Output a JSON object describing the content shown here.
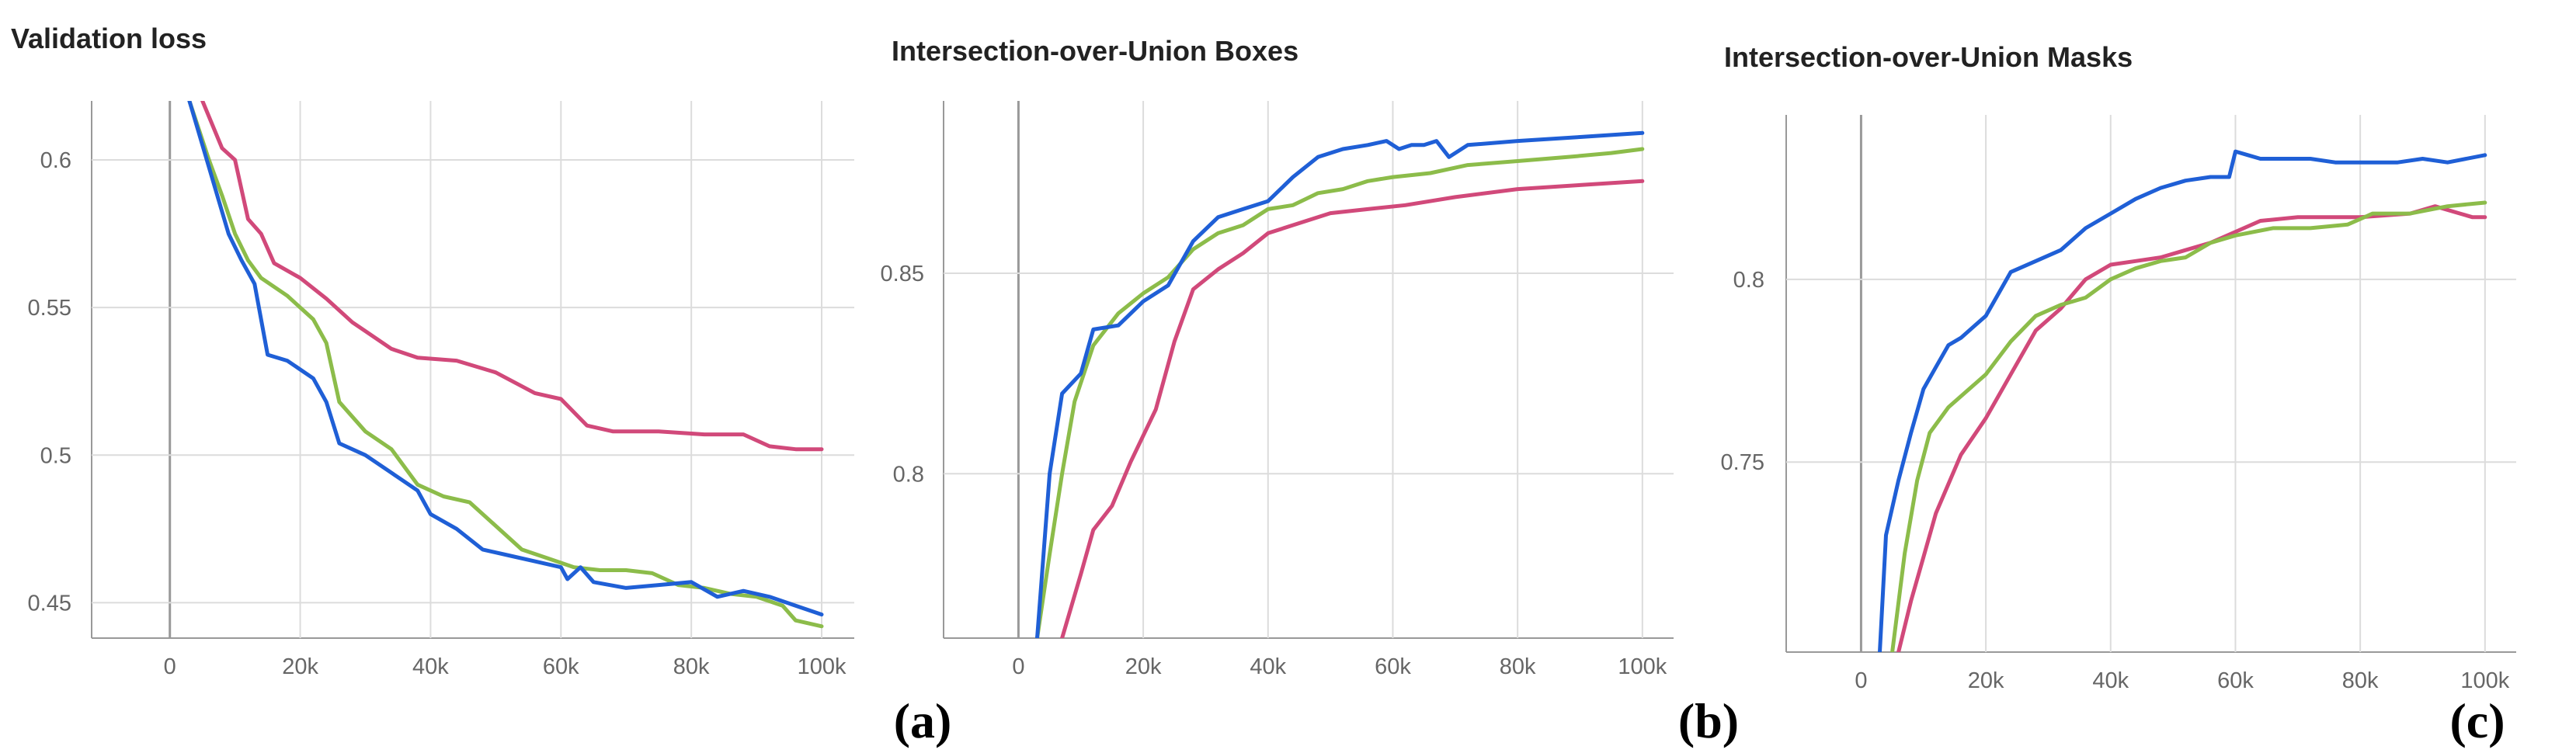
{
  "colors": {
    "red": "#d1497a",
    "green": "#8cbc4a",
    "blue": "#1f5fd6"
  },
  "panel_labels": [
    "(a)",
    "(b)",
    "(c)"
  ],
  "chart_data": [
    {
      "type": "line",
      "title": "Validation loss",
      "xlim": [
        -12000,
        105000
      ],
      "ylim": [
        0.438,
        0.62
      ],
      "x_ticks": [
        0,
        20000,
        40000,
        60000,
        80000,
        100000
      ],
      "x_tick_labels": [
        "0",
        "20k",
        "40k",
        "60k",
        "80k",
        "100k"
      ],
      "y_ticks": [
        0.45,
        0.5,
        0.55,
        0.6
      ],
      "y_tick_labels": [
        "0.45",
        "0.5",
        "0.55",
        "0.6"
      ],
      "grid": true,
      "series": [
        {
          "color": "red",
          "values": [
            [
              5000,
              0.62
            ],
            [
              8000,
              0.604
            ],
            [
              10000,
              0.6
            ],
            [
              12000,
              0.58
            ],
            [
              14000,
              0.575
            ],
            [
              16000,
              0.565
            ],
            [
              20000,
              0.56
            ],
            [
              24000,
              0.553
            ],
            [
              28000,
              0.545
            ],
            [
              30000,
              0.542
            ],
            [
              34000,
              0.536
            ],
            [
              38000,
              0.533
            ],
            [
              44000,
              0.532
            ],
            [
              50000,
              0.528
            ],
            [
              56000,
              0.521
            ],
            [
              60000,
              0.519
            ],
            [
              64000,
              0.51
            ],
            [
              68000,
              0.508
            ],
            [
              75000,
              0.508
            ],
            [
              82000,
              0.507
            ],
            [
              88000,
              0.507
            ],
            [
              92000,
              0.503
            ],
            [
              96000,
              0.502
            ],
            [
              100000,
              0.502
            ]
          ]
        },
        {
          "color": "green",
          "values": [
            [
              3000,
              0.62
            ],
            [
              6000,
              0.6
            ],
            [
              8000,
              0.588
            ],
            [
              10000,
              0.575
            ],
            [
              12000,
              0.566
            ],
            [
              14000,
              0.56
            ],
            [
              18000,
              0.554
            ],
            [
              22000,
              0.546
            ],
            [
              24000,
              0.538
            ],
            [
              26000,
              0.518
            ],
            [
              30000,
              0.508
            ],
            [
              34000,
              0.502
            ],
            [
              38000,
              0.49
            ],
            [
              42000,
              0.486
            ],
            [
              46000,
              0.484
            ],
            [
              50000,
              0.476
            ],
            [
              54000,
              0.468
            ],
            [
              58000,
              0.465
            ],
            [
              62000,
              0.462
            ],
            [
              66000,
              0.461
            ],
            [
              70000,
              0.461
            ],
            [
              74000,
              0.46
            ],
            [
              78000,
              0.456
            ],
            [
              82000,
              0.455
            ],
            [
              86000,
              0.453
            ],
            [
              90000,
              0.452
            ],
            [
              94000,
              0.449
            ],
            [
              96000,
              0.444
            ],
            [
              100000,
              0.442
            ]
          ]
        },
        {
          "color": "blue",
          "values": [
            [
              3000,
              0.62
            ],
            [
              5000,
              0.605
            ],
            [
              7000,
              0.59
            ],
            [
              9000,
              0.575
            ],
            [
              11000,
              0.566
            ],
            [
              13000,
              0.558
            ],
            [
              15000,
              0.534
            ],
            [
              18000,
              0.532
            ],
            [
              22000,
              0.526
            ],
            [
              24000,
              0.518
            ],
            [
              26000,
              0.504
            ],
            [
              30000,
              0.5
            ],
            [
              34000,
              0.494
            ],
            [
              38000,
              0.488
            ],
            [
              40000,
              0.48
            ],
            [
              44000,
              0.475
            ],
            [
              48000,
              0.468
            ],
            [
              52000,
              0.466
            ],
            [
              56000,
              0.464
            ],
            [
              60000,
              0.462
            ],
            [
              61000,
              0.458
            ],
            [
              63000,
              0.462
            ],
            [
              65000,
              0.457
            ],
            [
              70000,
              0.455
            ],
            [
              75000,
              0.456
            ],
            [
              80000,
              0.457
            ],
            [
              84000,
              0.452
            ],
            [
              88000,
              0.454
            ],
            [
              92000,
              0.452
            ],
            [
              96000,
              0.449
            ],
            [
              100000,
              0.446
            ]
          ]
        }
      ]
    },
    {
      "type": "line",
      "title": "Intersection-over-Union Boxes",
      "xlim": [
        -12000,
        105000
      ],
      "ylim": [
        0.759,
        0.893
      ],
      "x_ticks": [
        0,
        20000,
        40000,
        60000,
        80000,
        100000
      ],
      "x_tick_labels": [
        "0",
        "20k",
        "40k",
        "60k",
        "80k",
        "100k"
      ],
      "y_ticks": [
        0.8,
        0.85
      ],
      "y_tick_labels": [
        "0.8",
        "0.85"
      ],
      "grid": true,
      "series": [
        {
          "color": "red",
          "values": [
            [
              7000,
              0.759
            ],
            [
              10000,
              0.775
            ],
            [
              12000,
              0.786
            ],
            [
              15000,
              0.792
            ],
            [
              18000,
              0.803
            ],
            [
              22000,
              0.816
            ],
            [
              25000,
              0.833
            ],
            [
              28000,
              0.846
            ],
            [
              32000,
              0.851
            ],
            [
              36000,
              0.855
            ],
            [
              40000,
              0.86
            ],
            [
              46000,
              0.863
            ],
            [
              50000,
              0.865
            ],
            [
              56000,
              0.866
            ],
            [
              62000,
              0.867
            ],
            [
              70000,
              0.869
            ],
            [
              80000,
              0.871
            ],
            [
              90000,
              0.872
            ],
            [
              100000,
              0.873
            ]
          ]
        },
        {
          "color": "green",
          "values": [
            [
              3000,
              0.759
            ],
            [
              5000,
              0.78
            ],
            [
              7000,
              0.8
            ],
            [
              9000,
              0.818
            ],
            [
              12000,
              0.832
            ],
            [
              16000,
              0.84
            ],
            [
              20000,
              0.845
            ],
            [
              24000,
              0.849
            ],
            [
              28000,
              0.856
            ],
            [
              32000,
              0.86
            ],
            [
              36000,
              0.862
            ],
            [
              40000,
              0.866
            ],
            [
              44000,
              0.867
            ],
            [
              48000,
              0.87
            ],
            [
              52000,
              0.871
            ],
            [
              56000,
              0.873
            ],
            [
              60000,
              0.874
            ],
            [
              66000,
              0.875
            ],
            [
              72000,
              0.877
            ],
            [
              80000,
              0.878
            ],
            [
              88000,
              0.879
            ],
            [
              95000,
              0.88
            ],
            [
              100000,
              0.881
            ]
          ]
        },
        {
          "color": "blue",
          "values": [
            [
              3000,
              0.759
            ],
            [
              5000,
              0.8
            ],
            [
              7000,
              0.82
            ],
            [
              10000,
              0.825
            ],
            [
              12000,
              0.836
            ],
            [
              16000,
              0.837
            ],
            [
              20000,
              0.843
            ],
            [
              24000,
              0.847
            ],
            [
              28000,
              0.858
            ],
            [
              32000,
              0.864
            ],
            [
              36000,
              0.866
            ],
            [
              40000,
              0.868
            ],
            [
              44000,
              0.874
            ],
            [
              48000,
              0.879
            ],
            [
              52000,
              0.881
            ],
            [
              56000,
              0.882
            ],
            [
              59000,
              0.883
            ],
            [
              61000,
              0.881
            ],
            [
              63000,
              0.882
            ],
            [
              65000,
              0.882
            ],
            [
              67000,
              0.883
            ],
            [
              69000,
              0.879
            ],
            [
              72000,
              0.882
            ],
            [
              80000,
              0.883
            ],
            [
              90000,
              0.884
            ],
            [
              100000,
              0.885
            ]
          ]
        }
      ]
    },
    {
      "type": "line",
      "title": "Intersection-over-Union Masks",
      "xlim": [
        -12000,
        105000
      ],
      "ylim": [
        0.698,
        0.845
      ],
      "x_ticks": [
        0,
        20000,
        40000,
        60000,
        80000,
        100000
      ],
      "x_tick_labels": [
        "0",
        "20k",
        "40k",
        "60k",
        "80k",
        "100k"
      ],
      "y_ticks": [
        0.75,
        0.8
      ],
      "y_tick_labels": [
        "0.75",
        "0.8"
      ],
      "grid": true,
      "series": [
        {
          "color": "red",
          "values": [
            [
              6000,
              0.698
            ],
            [
              8000,
              0.712
            ],
            [
              10000,
              0.724
            ],
            [
              12000,
              0.736
            ],
            [
              14000,
              0.744
            ],
            [
              16000,
              0.752
            ],
            [
              20000,
              0.762
            ],
            [
              24000,
              0.774
            ],
            [
              28000,
              0.786
            ],
            [
              32000,
              0.792
            ],
            [
              36000,
              0.8
            ],
            [
              40000,
              0.804
            ],
            [
              44000,
              0.805
            ],
            [
              48000,
              0.806
            ],
            [
              52000,
              0.808
            ],
            [
              56000,
              0.81
            ],
            [
              60000,
              0.813
            ],
            [
              64000,
              0.816
            ],
            [
              70000,
              0.817
            ],
            [
              80000,
              0.817
            ],
            [
              88000,
              0.818
            ],
            [
              92000,
              0.82
            ],
            [
              96000,
              0.818
            ],
            [
              98000,
              0.817
            ],
            [
              100000,
              0.817
            ]
          ]
        },
        {
          "color": "green",
          "values": [
            [
              5000,
              0.698
            ],
            [
              7000,
              0.725
            ],
            [
              9000,
              0.745
            ],
            [
              11000,
              0.758
            ],
            [
              14000,
              0.765
            ],
            [
              18000,
              0.771
            ],
            [
              20000,
              0.774
            ],
            [
              24000,
              0.783
            ],
            [
              28000,
              0.79
            ],
            [
              32000,
              0.793
            ],
            [
              36000,
              0.795
            ],
            [
              40000,
              0.8
            ],
            [
              44000,
              0.803
            ],
            [
              48000,
              0.805
            ],
            [
              52000,
              0.806
            ],
            [
              56000,
              0.81
            ],
            [
              60000,
              0.812
            ],
            [
              66000,
              0.814
            ],
            [
              72000,
              0.814
            ],
            [
              78000,
              0.815
            ],
            [
              82000,
              0.818
            ],
            [
              88000,
              0.818
            ],
            [
              94000,
              0.82
            ],
            [
              100000,
              0.821
            ]
          ]
        },
        {
          "color": "blue",
          "values": [
            [
              3000,
              0.698
            ],
            [
              4000,
              0.73
            ],
            [
              6000,
              0.745
            ],
            [
              8000,
              0.758
            ],
            [
              10000,
              0.77
            ],
            [
              12000,
              0.776
            ],
            [
              14000,
              0.782
            ],
            [
              16000,
              0.784
            ],
            [
              20000,
              0.79
            ],
            [
              24000,
              0.802
            ],
            [
              28000,
              0.805
            ],
            [
              32000,
              0.808
            ],
            [
              36000,
              0.814
            ],
            [
              40000,
              0.818
            ],
            [
              44000,
              0.822
            ],
            [
              48000,
              0.825
            ],
            [
              52000,
              0.827
            ],
            [
              56000,
              0.828
            ],
            [
              59000,
              0.828
            ],
            [
              60000,
              0.835
            ],
            [
              62000,
              0.834
            ],
            [
              64000,
              0.833
            ],
            [
              68000,
              0.833
            ],
            [
              72000,
              0.833
            ],
            [
              76000,
              0.832
            ],
            [
              80000,
              0.832
            ],
            [
              86000,
              0.832
            ],
            [
              90000,
              0.833
            ],
            [
              94000,
              0.832
            ],
            [
              100000,
              0.834
            ]
          ]
        }
      ]
    }
  ]
}
